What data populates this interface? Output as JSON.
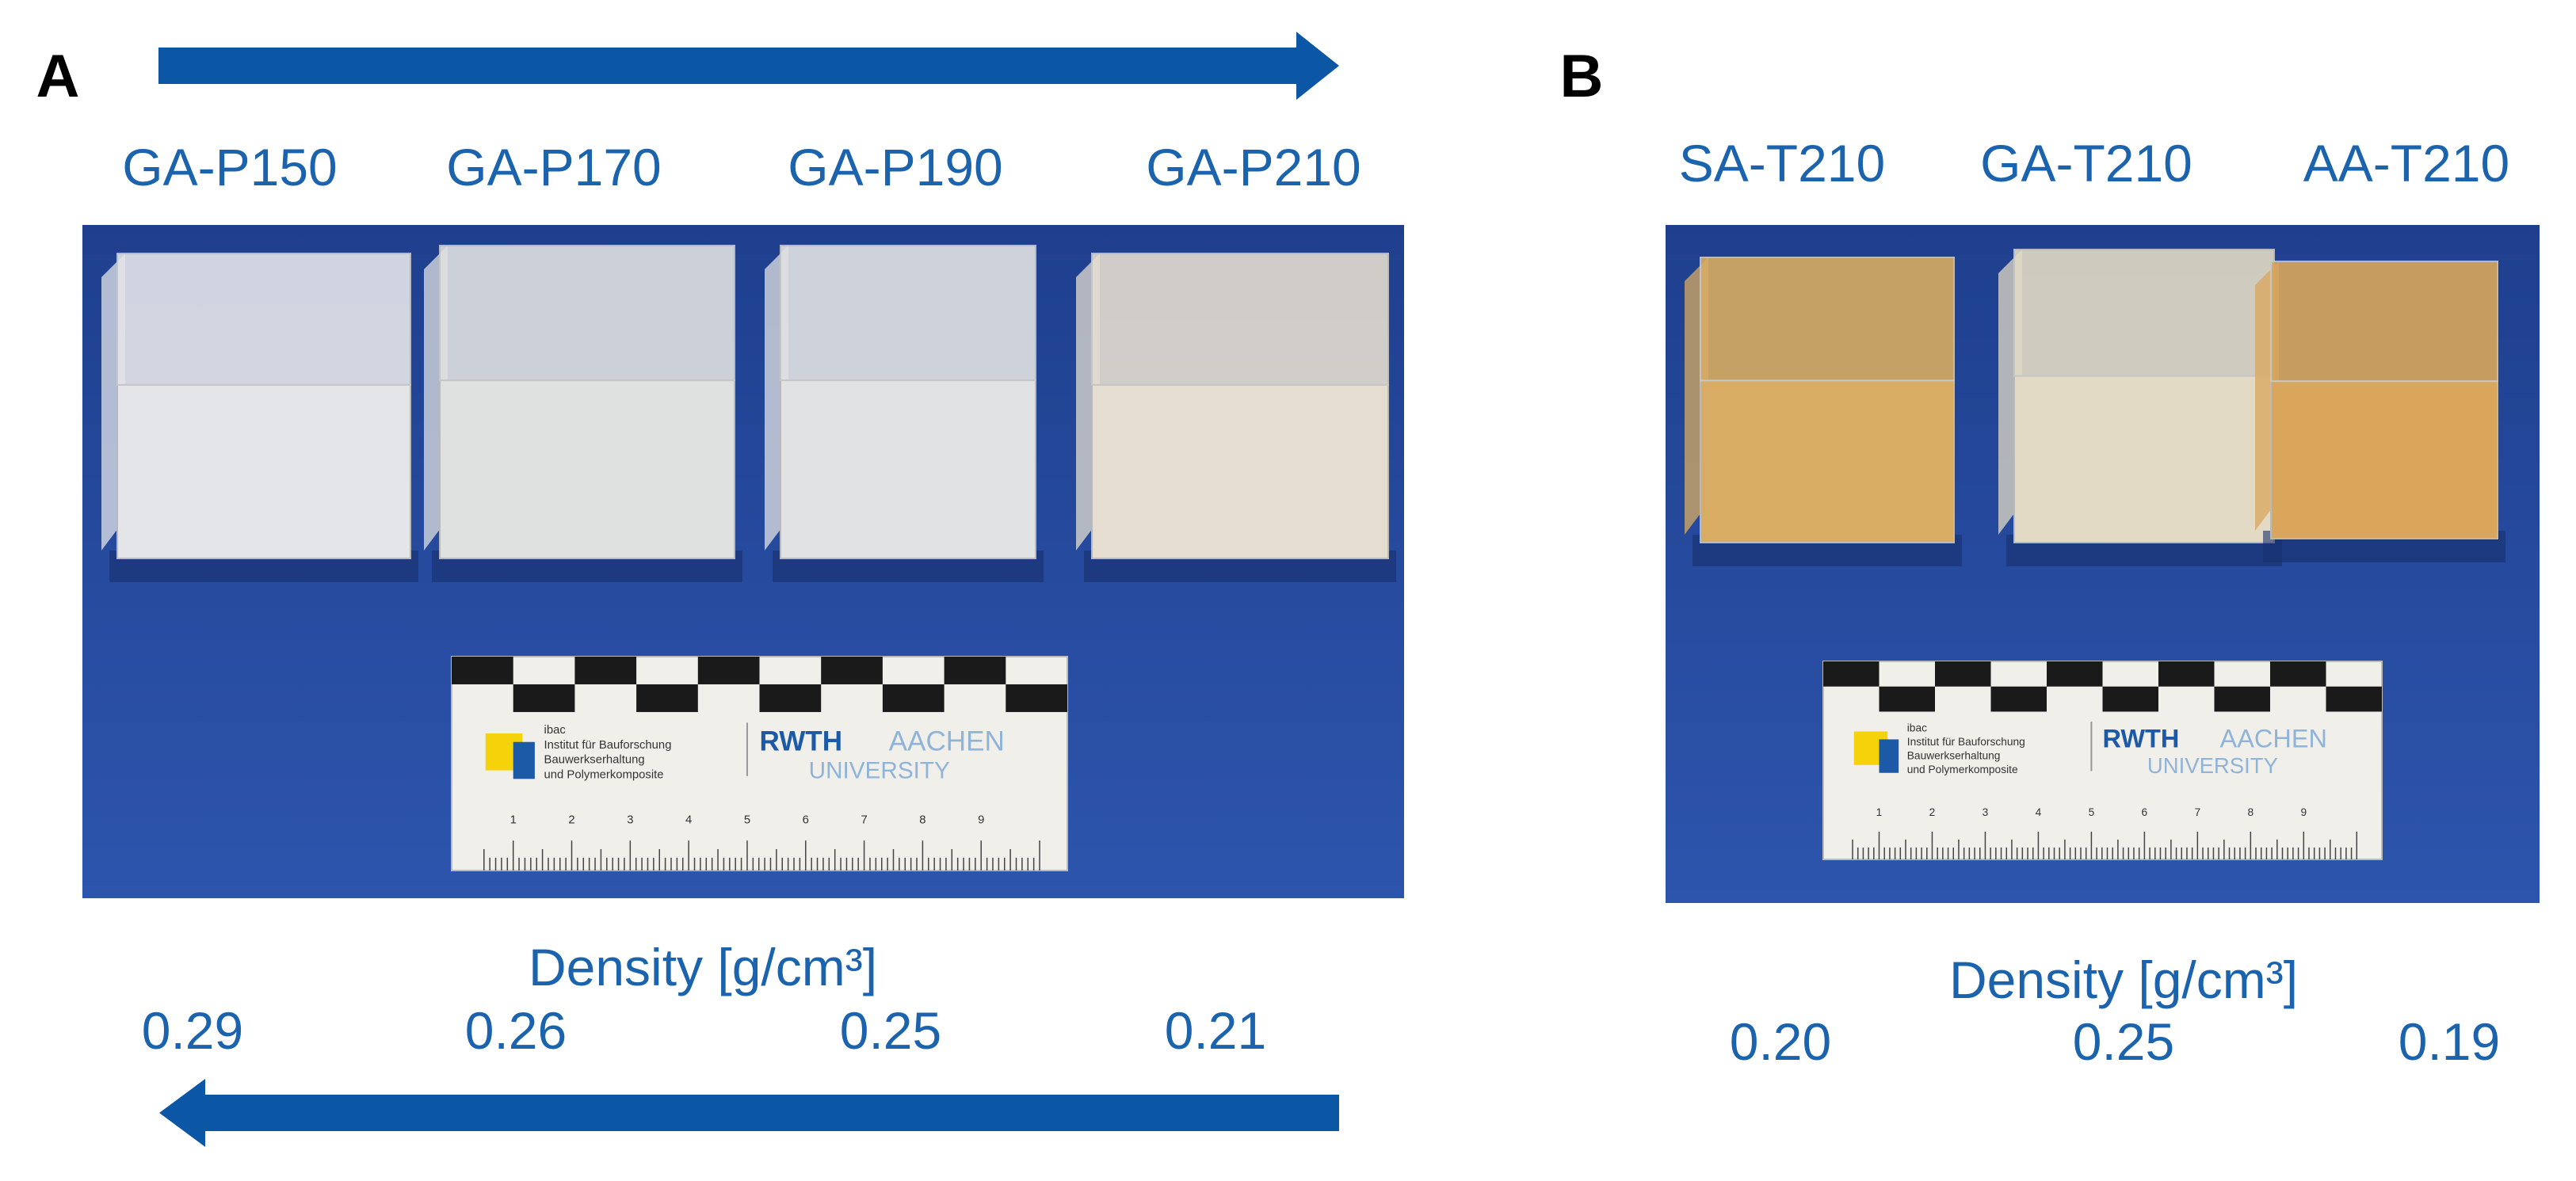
{
  "panels": [
    {
      "letter": "A",
      "samples": [
        {
          "label": "GA-P150",
          "density": "0.29"
        },
        {
          "label": "GA-P170",
          "density": "0.26"
        },
        {
          "label": "GA-P190",
          "density": "0.25"
        },
        {
          "label": "GA-P210",
          "density": "0.21"
        }
      ],
      "density_title": "Density [g/cm³]"
    },
    {
      "letter": "B",
      "samples": [
        {
          "label": "SA-T210",
          "density": "0.20"
        },
        {
          "label": "GA-T210",
          "density": "0.25"
        },
        {
          "label": "AA-T210",
          "density": "0.19"
        }
      ],
      "density_title": "Density [g/cm³]"
    }
  ],
  "ruler": {
    "institute": [
      "ibac",
      "Institut für Bauforschung",
      "Bauwerkserhaltung",
      "und Polymerkomposite"
    ],
    "brand": "RWTH",
    "brand_city": "AACHEN",
    "brand_university": "UNIVERSITY",
    "scale": [
      "1",
      "2",
      "3",
      "4",
      "5",
      "6",
      "7",
      "8",
      "9"
    ]
  }
}
